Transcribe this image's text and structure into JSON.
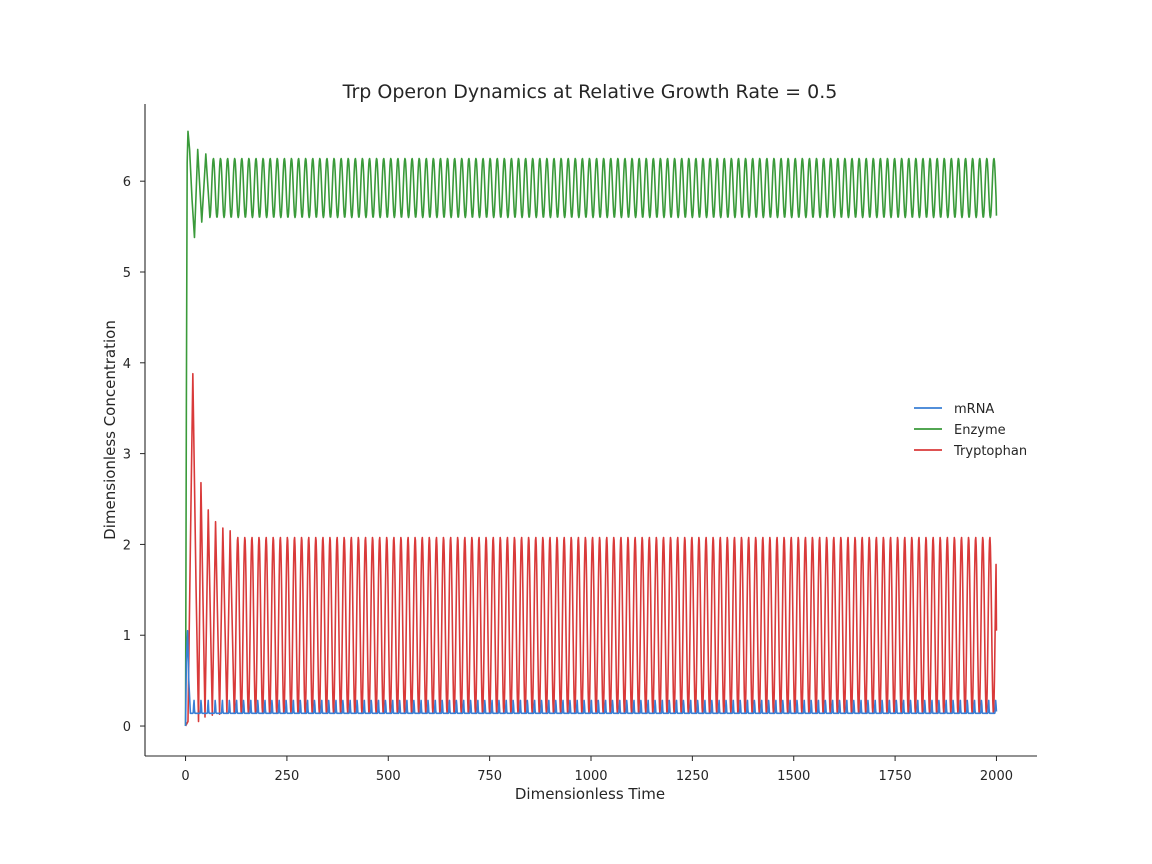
{
  "chart_data": {
    "type": "line",
    "title": "Trp Operon Dynamics at Relative Growth Rate = 0.5",
    "xlabel": "Dimensionless Time",
    "ylabel": "Dimensionless Concentration",
    "xlim": [
      -100,
      2100
    ],
    "ylim": [
      -0.33,
      6.85
    ],
    "xticks": [
      0,
      250,
      500,
      750,
      1000,
      1250,
      1500,
      1750,
      2000
    ],
    "yticks": [
      0,
      1,
      2,
      3,
      4,
      5,
      6
    ],
    "grid": false,
    "legend_position": "center-right",
    "oscillation_period": 17.5,
    "series": [
      {
        "name": "mRNA",
        "color": "#3a7fd5",
        "initial_points": [
          [
            0,
            0.0
          ],
          [
            2,
            0.7
          ],
          [
            5,
            1.05
          ],
          [
            8,
            0.5
          ],
          [
            12,
            0.14
          ]
        ],
        "steady_min": 0.14,
        "steady_max": 0.29,
        "end_value": 0.16
      },
      {
        "name": "Enzyme",
        "color": "#3a9a3a",
        "initial_points": [
          [
            0,
            0.0
          ],
          [
            2,
            3.5
          ],
          [
            4,
            6.2
          ],
          [
            6,
            6.55
          ],
          [
            10,
            6.35
          ],
          [
            16,
            5.8
          ],
          [
            22,
            5.38
          ],
          [
            30,
            6.35
          ],
          [
            40,
            5.55
          ],
          [
            50,
            6.3
          ],
          [
            60,
            5.6
          ]
        ],
        "steady_min": 5.6,
        "steady_max": 6.25,
        "end_value": 5.62
      },
      {
        "name": "Tryptophan",
        "color": "#d93a3a",
        "initial_points": [
          [
            0,
            0.0
          ],
          [
            6,
            0.05
          ],
          [
            12,
            2.0
          ],
          [
            18,
            3.88
          ],
          [
            26,
            1.5
          ],
          [
            32,
            0.05
          ],
          [
            38,
            2.68
          ],
          [
            48,
            0.1
          ],
          [
            56,
            2.38
          ],
          [
            66,
            0.12
          ],
          [
            74,
            2.25
          ],
          [
            84,
            0.13
          ],
          [
            92,
            2.18
          ],
          [
            102,
            0.14
          ],
          [
            110,
            2.15
          ],
          [
            120,
            0.14
          ]
        ],
        "steady_min": 0.14,
        "steady_max": 2.08,
        "end_value": 1.05
      }
    ]
  }
}
